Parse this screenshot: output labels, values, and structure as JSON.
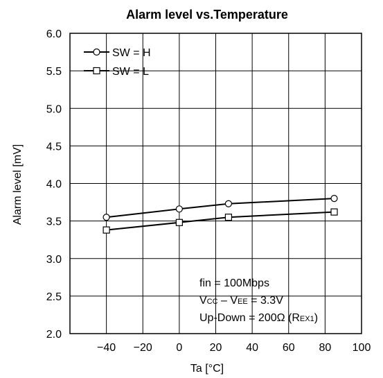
{
  "chart_data": {
    "type": "line",
    "title": "Alarm level vs.Temperature",
    "xlabel": "Ta [°C]",
    "ylabel": "Alarm level [mV]",
    "xlim": [
      -60,
      100
    ],
    "ylim": [
      2.0,
      6.0
    ],
    "xticks": [
      "−40",
      "−20",
      "0",
      "20",
      "40",
      "60",
      "80",
      "100"
    ],
    "xtick_values": [
      -40,
      -20,
      0,
      20,
      40,
      60,
      80,
      100
    ],
    "yticks": [
      "6.0",
      "5.5",
      "5.0",
      "4.5",
      "4.0",
      "3.5",
      "3.0",
      "2.5",
      "2.0"
    ],
    "ytick_values": [
      6.0,
      5.5,
      5.0,
      4.5,
      4.0,
      3.5,
      3.0,
      2.5,
      2.0
    ],
    "grid": true,
    "legend_position": "top-left",
    "series": [
      {
        "name": "SW = H",
        "marker": "circle",
        "x": [
          -40,
          0,
          27,
          85
        ],
        "y": [
          3.55,
          3.66,
          3.73,
          3.8
        ]
      },
      {
        "name": "SW = L",
        "marker": "square",
        "x": [
          -40,
          0,
          27,
          85
        ],
        "y": [
          3.38,
          3.48,
          3.55,
          3.62
        ]
      }
    ],
    "annotations": [
      {
        "id": "fin",
        "parts": [
          {
            "t": "fin = 100Mbps",
            "sub": false
          }
        ]
      },
      {
        "id": "vcc",
        "parts": [
          {
            "t": "V",
            "sub": false
          },
          {
            "t": "CC",
            "sub": true
          },
          {
            "t": " – V",
            "sub": false
          },
          {
            "t": "EE",
            "sub": true
          },
          {
            "t": " = 3.3V",
            "sub": false
          }
        ]
      },
      {
        "id": "updown",
        "parts": [
          {
            "t": "Up-Down = 200Ω (R",
            "sub": false
          },
          {
            "t": "EX1",
            "sub": true
          },
          {
            "t": ")",
            "sub": false
          }
        ]
      }
    ]
  }
}
